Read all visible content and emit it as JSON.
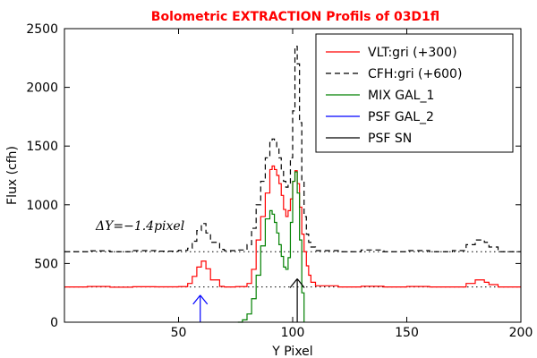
{
  "chart_data": {
    "type": "line",
    "title": "Bolometric EXTRACTION Profils of 03D1fl",
    "xlabel": "Y Pixel",
    "ylabel": "Flux (cfh)",
    "xlim": [
      0,
      200
    ],
    "ylim": [
      0,
      2500
    ],
    "xticks": [
      50,
      100,
      150,
      200
    ],
    "yticks": [
      0,
      500,
      1000,
      1500,
      2000,
      2500
    ],
    "legend_position": "top-right",
    "annotation": "ΔY=−1.4pixel",
    "guide_lines": [
      300,
      600
    ],
    "series": [
      {
        "name": "VLT:gri (+300)",
        "color": "#ff0000",
        "style": "solid",
        "x": [
          0,
          10,
          20,
          30,
          40,
          50,
          54,
          56,
          58,
          60,
          62,
          64,
          68,
          70,
          75,
          80,
          82,
          84,
          86,
          88,
          90,
          91,
          92,
          93,
          94,
          95,
          96,
          97,
          98,
          99,
          100,
          101,
          102,
          103,
          104,
          105,
          106,
          107,
          108,
          110,
          120,
          130,
          140,
          150,
          160,
          170,
          176,
          180,
          184,
          186,
          190,
          200
        ],
        "values": [
          300,
          304,
          298,
          302,
          301,
          303,
          330,
          390,
          470,
          520,
          455,
          360,
          305,
          300,
          303,
          330,
          450,
          700,
          900,
          1100,
          1300,
          1330,
          1300,
          1250,
          1180,
          1080,
          960,
          900,
          950,
          1050,
          1200,
          1290,
          1180,
          980,
          750,
          600,
          480,
          400,
          340,
          310,
          300,
          306,
          300,
          304,
          300,
          300,
          330,
          360,
          340,
          320,
          300,
          300
        ]
      },
      {
        "name": "CFH:gri (+600)",
        "color": "#000000",
        "style": "dashed",
        "x": [
          0,
          10,
          20,
          30,
          40,
          50,
          54,
          56,
          58,
          60,
          62,
          64,
          68,
          70,
          75,
          80,
          82,
          84,
          86,
          88,
          90,
          91,
          92,
          93,
          94,
          95,
          96,
          97,
          98,
          99,
          100,
          101,
          102,
          103,
          104,
          105,
          106,
          107,
          108,
          110,
          120,
          130,
          140,
          150,
          160,
          170,
          176,
          180,
          184,
          186,
          190,
          200
        ],
        "values": [
          600,
          608,
          600,
          610,
          605,
          612,
          630,
          690,
          780,
          840,
          760,
          680,
          620,
          610,
          615,
          660,
          800,
          1000,
          1200,
          1400,
          1530,
          1560,
          1540,
          1480,
          1400,
          1300,
          1200,
          1150,
          1180,
          1400,
          1800,
          2350,
          2200,
          1700,
          1200,
          900,
          750,
          680,
          640,
          610,
          600,
          615,
          600,
          610,
          600,
          610,
          660,
          700,
          680,
          640,
          600,
          600
        ]
      },
      {
        "name": "MIX GAL_1",
        "color": "#008000",
        "style": "solid",
        "x": [
          76,
          78,
          80,
          82,
          84,
          86,
          88,
          90,
          91,
          92,
          93,
          94,
          95,
          96,
          97,
          98,
          99,
          100,
          101,
          102,
          103,
          104,
          105
        ],
        "values": [
          0,
          20,
          70,
          200,
          400,
          650,
          880,
          950,
          920,
          850,
          760,
          660,
          560,
          470,
          450,
          550,
          850,
          1200,
          1280,
          1100,
          700,
          250,
          0
        ]
      },
      {
        "name": "PSF GAL_2",
        "color": "#0000ff",
        "style": "arrow",
        "x": [
          59.5,
          59.5
        ],
        "values": [
          0,
          230
        ]
      },
      {
        "name": "PSF SN",
        "color": "#000000",
        "style": "arrow",
        "x": [
          102,
          102
        ],
        "values": [
          0,
          370
        ]
      }
    ]
  }
}
